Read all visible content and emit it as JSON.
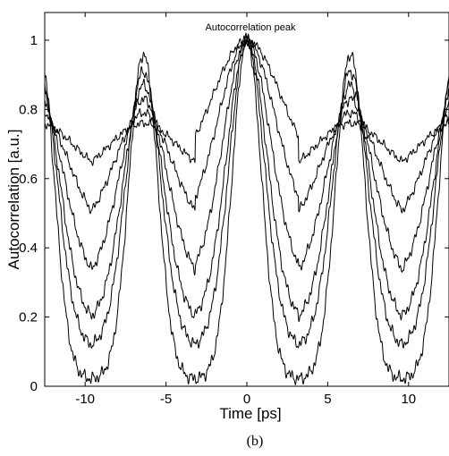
{
  "chart_data": {
    "type": "line",
    "xlabel": "Time [ps]",
    "ylabel": "Autocorrelation [a.u.]",
    "annotation": "Autocorrelation peak",
    "caption": "(b)",
    "xlim": [
      -12.5,
      12.5
    ],
    "ylim": [
      0,
      1.08
    ],
    "x_ticks": [
      -10,
      -5,
      0,
      5,
      10
    ],
    "y_ticks": [
      0,
      0.2,
      0.4,
      0.6,
      0.8,
      1
    ],
    "x_tick_labels": [
      "-10",
      "-5",
      "0",
      "5",
      "10"
    ],
    "y_tick_labels": [
      "0",
      "0.2",
      "0.4",
      "0.6",
      "0.8",
      "1"
    ],
    "grid": false,
    "peak_positions": [
      -12.8,
      -6.4,
      0,
      6.4,
      12.8
    ],
    "series": [
      {
        "side_peak": 0.76,
        "minimum": 0.6
      },
      {
        "side_peak": 0.79,
        "minimum": 0.44
      },
      {
        "side_peak": 0.83,
        "minimum": 0.29
      },
      {
        "side_peak": 0.87,
        "minimum": 0.18
      },
      {
        "side_peak": 0.91,
        "minimum": 0.11
      },
      {
        "side_peak": 0.96,
        "minimum": 0.02
      }
    ]
  }
}
